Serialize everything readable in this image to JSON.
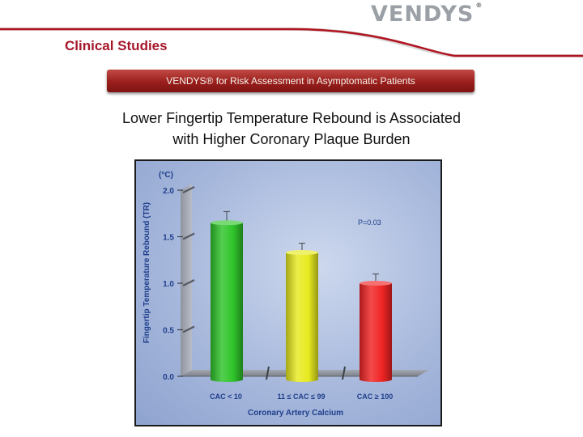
{
  "header": {
    "logo_text": "VENDYS",
    "logo_mark": "®",
    "section_title": "Clinical Studies",
    "accent_color": "#a6172a",
    "banner_color": "#9a1f1c"
  },
  "banner": {
    "text": "VENDYS® for Risk Assessment in Asymptomatic Patients"
  },
  "slide_title": {
    "line1": "Lower Fingertip Temperature Rebound is Associated",
    "line2": "with Higher Coronary Plaque Burden"
  },
  "chart_data": {
    "type": "bar",
    "categories": [
      "CAC < 10",
      "11 ≤ CAC ≤ 99",
      "CAC ≥ 100"
    ],
    "values": [
      1.65,
      1.33,
      1.0
    ],
    "error_upper": [
      1.77,
      1.43,
      1.1
    ],
    "colors": [
      "#2fc42a",
      "#e7ea1e",
      "#f02424"
    ],
    "unit_label": "(°C)",
    "ylabel": "Fingertip Temperature Rebound (TR)",
    "xlabel": "Coronary Artery Calcium",
    "yticks": [
      2.0,
      1.5,
      1.0,
      0.5,
      0.0
    ],
    "ytick_labels": [
      "2.0",
      "1.5",
      "1.0",
      "0.5",
      "0.0"
    ],
    "ylim": [
      0,
      2.0
    ],
    "annotation": "P=0.03",
    "grid": false,
    "legend": "none"
  }
}
